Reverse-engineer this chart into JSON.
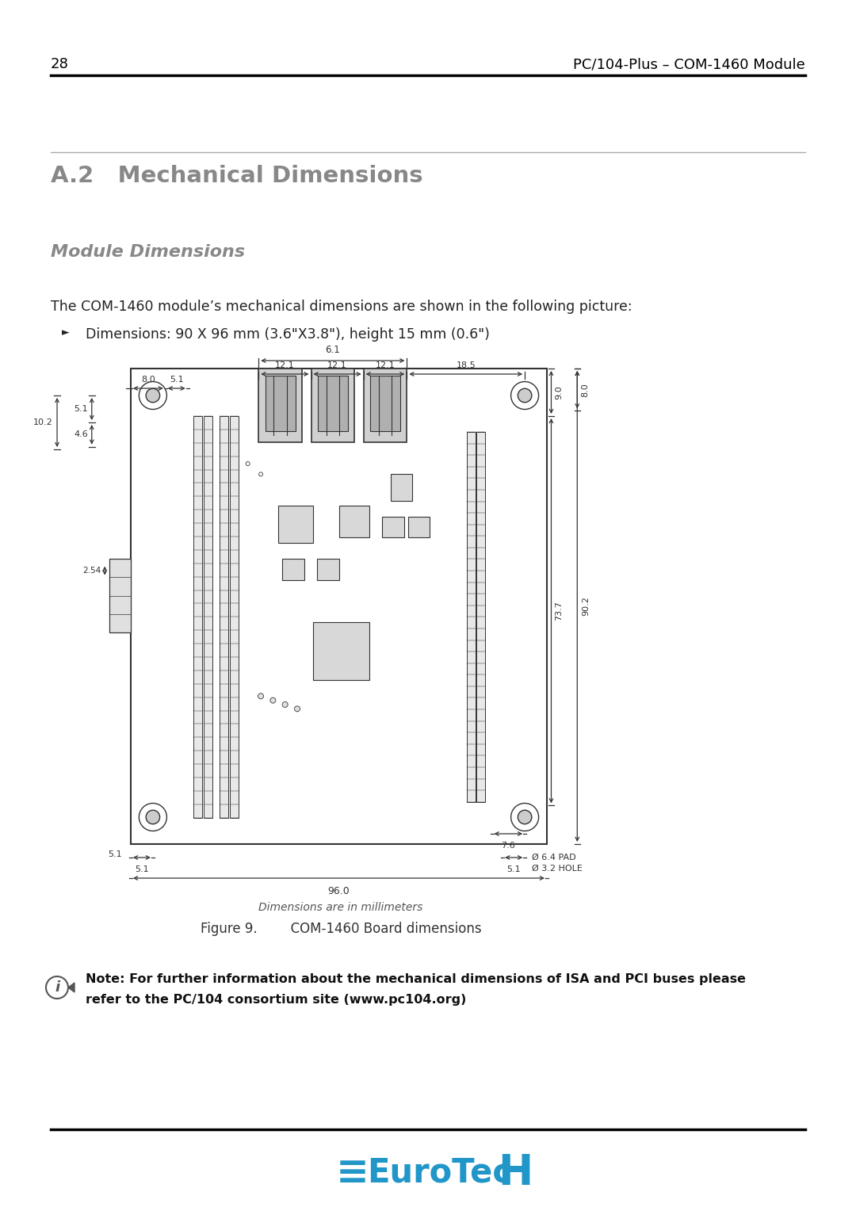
{
  "page_number": "28",
  "header_right": "PC/104-Plus – COM-1460 Module",
  "section_title": "A.2   Mechanical Dimensions",
  "subsection_title": "Module Dimensions",
  "body_text1": "The COM-1460 module’s mechanical dimensions are shown in the following picture:",
  "bullet_text": "Dimensions: 90 X 96 mm (3.6\"X3.8\"), height 15 mm (0.6\")",
  "figure_caption": "Figure 9.        COM-1460 Board dimensions",
  "dim_note": "Dimensions are in millimeters",
  "note_line1": "Note: For further information about the mechanical dimensions of ISA and PCI buses please",
  "note_line2": "refer to the PC/104 consortium site (www.pc104.org)",
  "eurotech_color": "#2196c8",
  "bg_color": "#ffffff",
  "text_color": "#000000",
  "section_title_color": "#888888",
  "subsection_color": "#888888",
  "diagram_line_color": "#333333"
}
